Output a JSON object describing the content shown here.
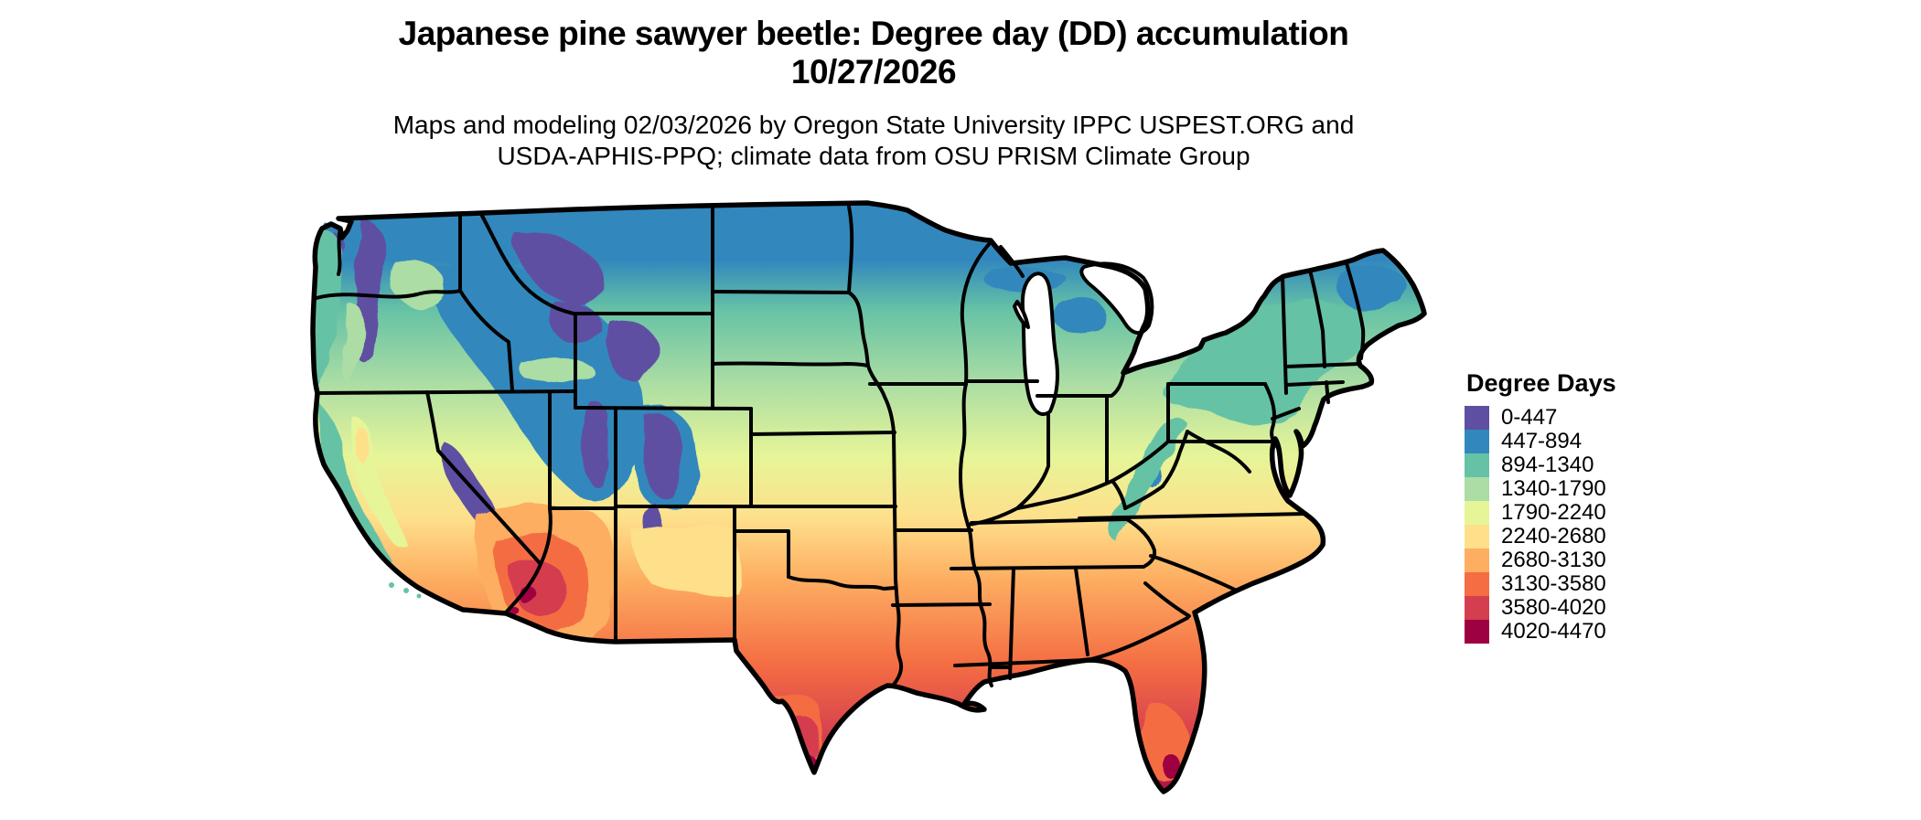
{
  "title": {
    "line1": "Japanese pine sawyer beetle: Degree day (DD) accumulation",
    "line2": "10/27/2026"
  },
  "subtitle": {
    "line1": "Maps and modeling 02/03/2026 by Oregon State University IPPC USPEST.ORG and",
    "line2": "USDA-APHIS-PPQ; climate data from OSU PRISM Climate Group"
  },
  "legend": {
    "title": "Degree Days",
    "items": [
      {
        "label": "0-447",
        "color": "#5e4fa2"
      },
      {
        "label": "447-894",
        "color": "#3288bd"
      },
      {
        "label": "894-1340",
        "color": "#66c2a5"
      },
      {
        "label": "1340-1790",
        "color": "#abdda4"
      },
      {
        "label": "1790-2240",
        "color": "#e6f598"
      },
      {
        "label": "2240-2680",
        "color": "#fee08b"
      },
      {
        "label": "2680-3130",
        "color": "#fdae61"
      },
      {
        "label": "3130-3580",
        "color": "#f46d43"
      },
      {
        "label": "3580-4020",
        "color": "#d53e4f"
      },
      {
        "label": "4020-4470",
        "color": "#9e0142"
      }
    ]
  },
  "map": {
    "boundary_color": "#000000",
    "background_color": "#ffffff"
  }
}
